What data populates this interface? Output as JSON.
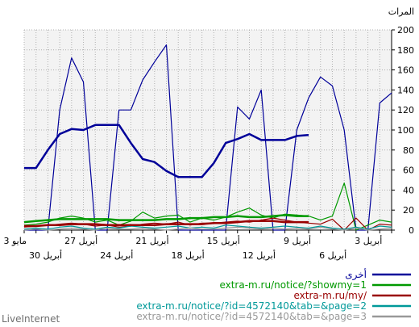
{
  "chart_data": {
    "type": "line",
    "ylabel": "المرات",
    "ylim": [
      0,
      200
    ],
    "yticks": [
      0,
      20,
      40,
      60,
      80,
      100,
      120,
      140,
      160,
      180,
      200
    ],
    "grid": true,
    "x_count": 32,
    "x_labels_upper": [
      {
        "i": 0,
        "text": "3 مايو"
      },
      {
        "i": 6,
        "text": "27 أبريل"
      },
      {
        "i": 12,
        "text": "21 أبريل"
      },
      {
        "i": 18,
        "text": "15 أبريل"
      },
      {
        "i": 24,
        "text": "9 أبريل"
      },
      {
        "i": 30,
        "text": "3 أبريل"
      }
    ],
    "x_labels_lower": [
      {
        "i": 3,
        "text": "30 أبريل"
      },
      {
        "i": 9,
        "text": "24 أبريل"
      },
      {
        "i": 15,
        "text": "18 أبريل"
      },
      {
        "i": 21,
        "text": "12 أبريل"
      },
      {
        "i": 27,
        "text": "6 أبريل"
      }
    ],
    "series": [
      {
        "name": "أخرى",
        "color": "#000099",
        "width": 1.2,
        "values": [
          0,
          0,
          0,
          120,
          172,
          148,
          0,
          0,
          120,
          120,
          150,
          168,
          185,
          0,
          0,
          0,
          0,
          0,
          123,
          111,
          140,
          0,
          0,
          100,
          132,
          153,
          144,
          100,
          0,
          0,
          127,
          137
        ]
      },
      {
        "name": "أخرى",
        "color": "#000099",
        "width": 2.5,
        "is_average": true,
        "values": [
          62,
          62,
          80,
          96,
          101,
          100,
          105,
          105,
          105,
          87,
          71,
          68,
          59,
          53,
          53,
          53,
          67,
          87,
          91,
          96,
          90,
          90,
          90,
          94,
          95,
          null,
          null,
          null,
          null,
          null,
          null,
          null
        ]
      },
      {
        "name": "extra-m.ru/notice/?showmy=1",
        "color": "#009900",
        "width": 1.2,
        "values": [
          5,
          6,
          8,
          12,
          14,
          12,
          8,
          10,
          5,
          9,
          18,
          12,
          14,
          15,
          8,
          12,
          10,
          13,
          18,
          22,
          15,
          12,
          16,
          15,
          14,
          10,
          14,
          47,
          0,
          5,
          10,
          8
        ]
      },
      {
        "name": "extra-m.ru/notice/?showmy=1",
        "color": "#009900",
        "width": 2.5,
        "is_average": true,
        "values": [
          8,
          9,
          10,
          11,
          11,
          11,
          11,
          11,
          10,
          10,
          10,
          10,
          11,
          11,
          12,
          12,
          13,
          13,
          14,
          13,
          13,
          14,
          15,
          14,
          14,
          null,
          null,
          null,
          null,
          null,
          null,
          null
        ]
      },
      {
        "name": "extra-m.ru/my/",
        "color": "#990000",
        "width": 1.2,
        "values": [
          3,
          4,
          5,
          6,
          7,
          6,
          4,
          5,
          3,
          4,
          6,
          7,
          6,
          8,
          5,
          7,
          7,
          8,
          9,
          8,
          10,
          12,
          10,
          8,
          7,
          6,
          11,
          0,
          12,
          0,
          6,
          5
        ]
      },
      {
        "name": "extra-m.ru/my/",
        "color": "#990000",
        "width": 2.5,
        "is_average": true,
        "values": [
          4,
          4,
          5,
          5,
          6,
          6,
          6,
          5,
          5,
          5,
          5,
          5,
          6,
          6,
          6,
          6,
          7,
          7,
          8,
          9,
          9,
          9,
          8,
          8,
          8,
          null,
          null,
          null,
          null,
          null,
          null,
          null
        ]
      },
      {
        "name": "extra-m.ru/notice/?id=4572140&tab=&page=2",
        "color": "#009999",
        "width": 1.2,
        "values": [
          1,
          2,
          1,
          3,
          4,
          2,
          1,
          3,
          2,
          4,
          3,
          2,
          3,
          4,
          2,
          3,
          2,
          5,
          4,
          3,
          2,
          3,
          4,
          3,
          2,
          4,
          2,
          1,
          3,
          1,
          4,
          3
        ]
      },
      {
        "name": "extra-m.ru/notice/?id=4572140&tab=&page=3",
        "color": "#999999",
        "width": 1.2,
        "values": [
          0,
          1,
          0,
          1,
          2,
          1,
          0,
          2,
          1,
          1,
          2,
          1,
          0,
          1,
          2,
          1,
          1,
          2,
          3,
          2,
          1,
          2,
          1,
          2,
          1,
          3,
          1,
          0,
          2,
          0,
          1,
          2
        ]
      }
    ],
    "legend": {
      "position": "bottom-right",
      "entries": [
        {
          "label": "أخرى",
          "color": "#000099"
        },
        {
          "label": "extra-m.ru/notice/?showmy=1",
          "color": "#009900"
        },
        {
          "label": "extra-m.ru/my/",
          "color": "#990000"
        },
        {
          "label": "extra-m.ru/notice/?id=4572140&tab=&page=2",
          "color": "#009999"
        },
        {
          "label": "extra-m.ru/notice/?id=4572140&tab=&page=3",
          "color": "#999999"
        }
      ]
    }
  },
  "footer": "LiveInternet"
}
